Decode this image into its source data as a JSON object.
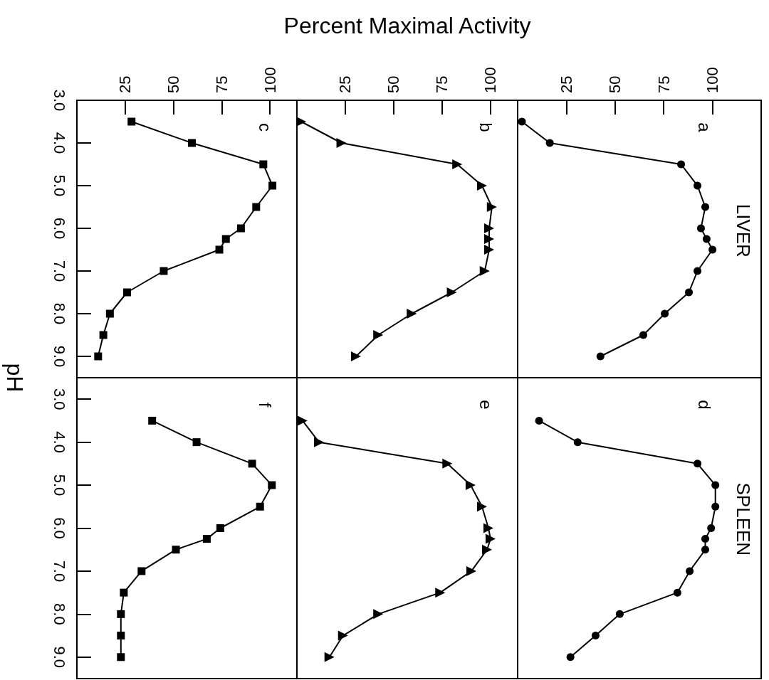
{
  "chart_data": [
    {
      "type": "line",
      "marker": "square",
      "color": "#000000",
      "x": [
        28.3,
        59.6,
        96.6,
        101.3,
        92.9,
        85,
        77.2,
        73.8,
        45,
        26,
        17.1,
        13.7,
        11
      ],
      "values": [
        3.5,
        4.0,
        4.5,
        5.0,
        5.5,
        6.0,
        6.25,
        6.5,
        7.0,
        7.5,
        8.0,
        8.5,
        9.0
      ],
      "xlim": [
        0,
        114
      ],
      "ylim": [
        9.5,
        3.0
      ],
      "xticks": [
        25,
        50,
        75,
        100
      ],
      "yticks": [
        {
          "value": 3,
          "label": "3.0"
        },
        {
          "value": 4,
          "label": "4.0"
        },
        {
          "value": 5,
          "label": "5.0"
        },
        {
          "value": 6,
          "label": "6.0"
        },
        {
          "value": 7,
          "label": "7.0"
        },
        {
          "value": 8,
          "label": "8.0"
        },
        {
          "value": 9,
          "label": "9.0"
        }
      ],
      "annotations": [
        "c"
      ]
    },
    {
      "type": "line",
      "marker": "triangle",
      "color": "#000000",
      "xlabel": "Percent Maximal Activity",
      "x": [
        2.2,
        23,
        82.8,
        95.6,
        100.7,
        99.3,
        99.3,
        99.3,
        97,
        80,
        59.3,
        42,
        30.5
      ],
      "values": [
        3.5,
        4.0,
        4.5,
        5.0,
        5.5,
        6.0,
        6.25,
        6.5,
        7.0,
        7.5,
        8.0,
        8.5,
        9.0
      ],
      "xlim": [
        0,
        114
      ],
      "ylim": [
        9.5,
        3.0
      ],
      "xticks": [
        25,
        50,
        75,
        100
      ],
      "tick_labels": "x",
      "annotations": [
        "b"
      ]
    },
    {
      "type": "line",
      "marker": "circle",
      "color": "#000000",
      "x": [
        2.2,
        16.5,
        83.9,
        92.3,
        96.3,
        94.1,
        97,
        100,
        92.3,
        87.9,
        75.5,
        64.5,
        42.5
      ],
      "values": [
        3.5,
        4.0,
        4.5,
        5.0,
        5.5,
        6.0,
        6.25,
        6.5,
        7.0,
        7.5,
        8.0,
        8.5,
        9.0
      ],
      "xlim": [
        0,
        125
      ],
      "ylim": [
        9.5,
        3.0
      ],
      "xticks": [
        25,
        50,
        75,
        100
      ],
      "tick_labels": "x",
      "annotations": [
        "a",
        "LIVER"
      ]
    },
    {
      "type": "line",
      "marker": "square",
      "color": "#000000",
      "ylabel": "pH",
      "x": [
        39,
        62,
        90.8,
        101,
        94.9,
        74.3,
        67.3,
        51.3,
        33.5,
        24.3,
        22.8,
        22.8,
        22.8
      ],
      "values": [
        3.5,
        4.0,
        4.5,
        5.0,
        5.5,
        6.0,
        6.25,
        6.5,
        7.0,
        7.5,
        8.0,
        8.5,
        9.0
      ],
      "xlim": [
        0,
        114
      ],
      "ylim": [
        9.5,
        2.5
      ],
      "yticks": [
        {
          "value": 3,
          "label": "3.0"
        },
        {
          "value": 4,
          "label": "4.0"
        },
        {
          "value": 5,
          "label": "5.0"
        },
        {
          "value": 6,
          "label": "6.0"
        },
        {
          "value": 7,
          "label": "7.0"
        },
        {
          "value": 8,
          "label": "8.0"
        },
        {
          "value": 9,
          "label": "9.0"
        }
      ],
      "tick_labels": "y",
      "annotations": [
        "f"
      ]
    },
    {
      "type": "line",
      "marker": "triangle",
      "color": "#000000",
      "x": [
        2.9,
        11.4,
        77.7,
        89.7,
        95.6,
        98.9,
        100,
        98.2,
        90.1,
        74,
        42,
        23.8,
        16.8
      ],
      "values": [
        3.5,
        4.0,
        4.5,
        5.0,
        5.5,
        6.0,
        6.25,
        6.5,
        7.0,
        7.5,
        8.0,
        8.5,
        9.0
      ],
      "xlim": [
        0,
        114
      ],
      "ylim": [
        9.5,
        2.5
      ],
      "tick_labels": false,
      "annotations": [
        "e"
      ]
    },
    {
      "type": "line",
      "marker": "circle",
      "color": "#000000",
      "x": [
        11,
        30.8,
        92.3,
        101.5,
        101.5,
        99.3,
        96.3,
        96.3,
        88.3,
        82,
        52.4,
        40,
        27.1
      ],
      "values": [
        3.5,
        4.0,
        4.5,
        5.0,
        5.5,
        6.0,
        6.25,
        6.5,
        7.0,
        7.5,
        8.0,
        8.5,
        9.0
      ],
      "xlim": [
        0,
        125
      ],
      "ylim": [
        9.5,
        2.5
      ],
      "tick_labels": false,
      "annotations": [
        "d",
        "SPLEEN"
      ]
    }
  ]
}
